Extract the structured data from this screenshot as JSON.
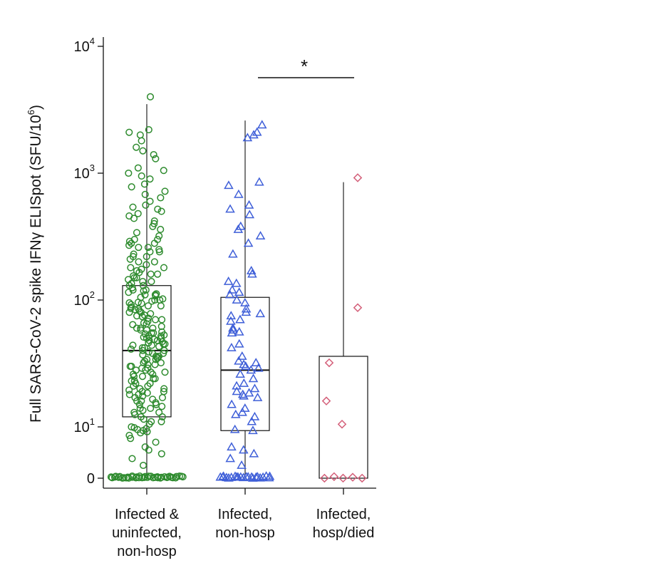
{
  "chart_data": {
    "type": "box",
    "ylabel": {
      "prefix": "Full SARS-CoV-2 spike IFNγ ELISpot (SFU/10",
      "sup": "6",
      "suffix": ")"
    },
    "y_scale": "log with zero",
    "y_ticks": [
      {
        "value": 0,
        "label": "0",
        "sup": ""
      },
      {
        "value": 10,
        "label": "10",
        "sup": "1"
      },
      {
        "value": 100,
        "label": "10",
        "sup": "2"
      },
      {
        "value": 1000,
        "label": "10",
        "sup": "3"
      },
      {
        "value": 10000,
        "label": "10",
        "sup": "4"
      }
    ],
    "categories": [
      [
        "Infected &",
        "uninfected,",
        "non-hosp"
      ],
      [
        "Infected,",
        "non-hosp"
      ],
      [
        "Infected,",
        "hosp/died"
      ]
    ],
    "series": [
      {
        "marker": "circle",
        "color": "#2e8b2e",
        "box": {
          "whisker_low": 0,
          "q1": 12,
          "median": 40,
          "q3": 130,
          "whisker_high": 3500
        },
        "outliers": [
          4000
        ],
        "zero_count": 40,
        "values": [
          2200,
          2100,
          2000,
          1800,
          1600,
          1500,
          1400,
          1300,
          1100,
          1050,
          1000,
          950,
          900,
          820,
          780,
          720,
          680,
          640,
          600,
          560,
          540,
          520,
          500,
          480,
          460,
          440,
          420,
          400,
          380,
          360,
          340,
          320,
          300,
          290,
          280,
          270,
          260,
          250,
          240,
          230,
          220,
          210,
          200,
          190,
          180,
          175,
          170,
          165,
          160,
          155,
          150,
          145,
          140,
          135,
          130,
          125,
          120,
          118,
          115,
          112,
          110,
          108,
          105,
          102,
          100,
          98,
          96,
          94,
          92,
          90,
          88,
          86,
          84,
          82,
          80,
          78,
          76,
          74,
          72,
          70,
          68,
          66,
          64,
          62,
          60,
          58,
          56,
          55,
          54,
          53,
          52,
          51,
          50,
          49,
          48,
          47,
          46,
          45,
          44,
          43,
          42,
          41,
          40,
          39,
          38,
          37,
          36,
          35,
          34,
          33,
          32,
          31,
          30,
          29,
          28,
          27,
          26,
          25,
          24,
          23,
          22,
          21,
          20,
          19.5,
          19,
          18.5,
          18,
          17.5,
          17,
          16.5,
          16,
          15.5,
          15,
          14.5,
          14,
          13.5,
          13,
          12.5,
          12,
          11.5,
          11,
          10.5,
          10,
          9.5,
          9,
          8.5,
          8,
          7.5,
          7,
          6,
          5,
          4,
          3,
          2.5,
          2,
          1.5,
          1,
          150,
          140,
          130,
          120,
          110,
          100,
          95,
          90,
          85,
          80,
          75,
          70,
          65,
          60,
          55,
          50,
          45,
          42,
          38,
          35,
          32,
          30,
          28,
          26,
          24,
          22,
          20,
          18,
          16,
          14,
          13,
          12,
          11,
          300,
          280,
          260,
          240,
          220,
          200,
          180,
          160,
          60,
          58,
          52,
          48,
          44,
          40,
          36,
          34,
          31,
          29,
          27,
          25,
          23,
          21,
          19,
          17,
          15
        ]
      },
      {
        "marker": "triangle",
        "color": "#3f5fd8",
        "box": {
          "whisker_low": 0,
          "q1": 8,
          "median": 28,
          "q3": 105,
          "whisker_high": 2600
        },
        "outliers": [],
        "zero_count": 22,
        "values": [
          2400,
          2100,
          2000,
          1900,
          850,
          800,
          680,
          560,
          520,
          470,
          380,
          360,
          320,
          280,
          230,
          170,
          160,
          140,
          135,
          120,
          115,
          110,
          100,
          95,
          85,
          80,
          78,
          75,
          70,
          68,
          60,
          58,
          56,
          55,
          45,
          42,
          36,
          33,
          32,
          31,
          30,
          29,
          28,
          26,
          24,
          22,
          21,
          20,
          19,
          18.5,
          18,
          17.5,
          17,
          15,
          14,
          13,
          12.5,
          12,
          11,
          8.5,
          8,
          3,
          2.5,
          2,
          1.5,
          1
        ]
      },
      {
        "marker": "diamond",
        "color": "#d4607a",
        "box": {
          "whisker_low": 0,
          "q1": 0,
          "median": 0,
          "q3": 36,
          "whisker_high": 850
        },
        "outliers": [],
        "zero_count": 5,
        "values": [
          920,
          87,
          32,
          16,
          10.5
        ]
      }
    ],
    "annotation": {
      "label": "*",
      "between": [
        1,
        2
      ]
    }
  }
}
